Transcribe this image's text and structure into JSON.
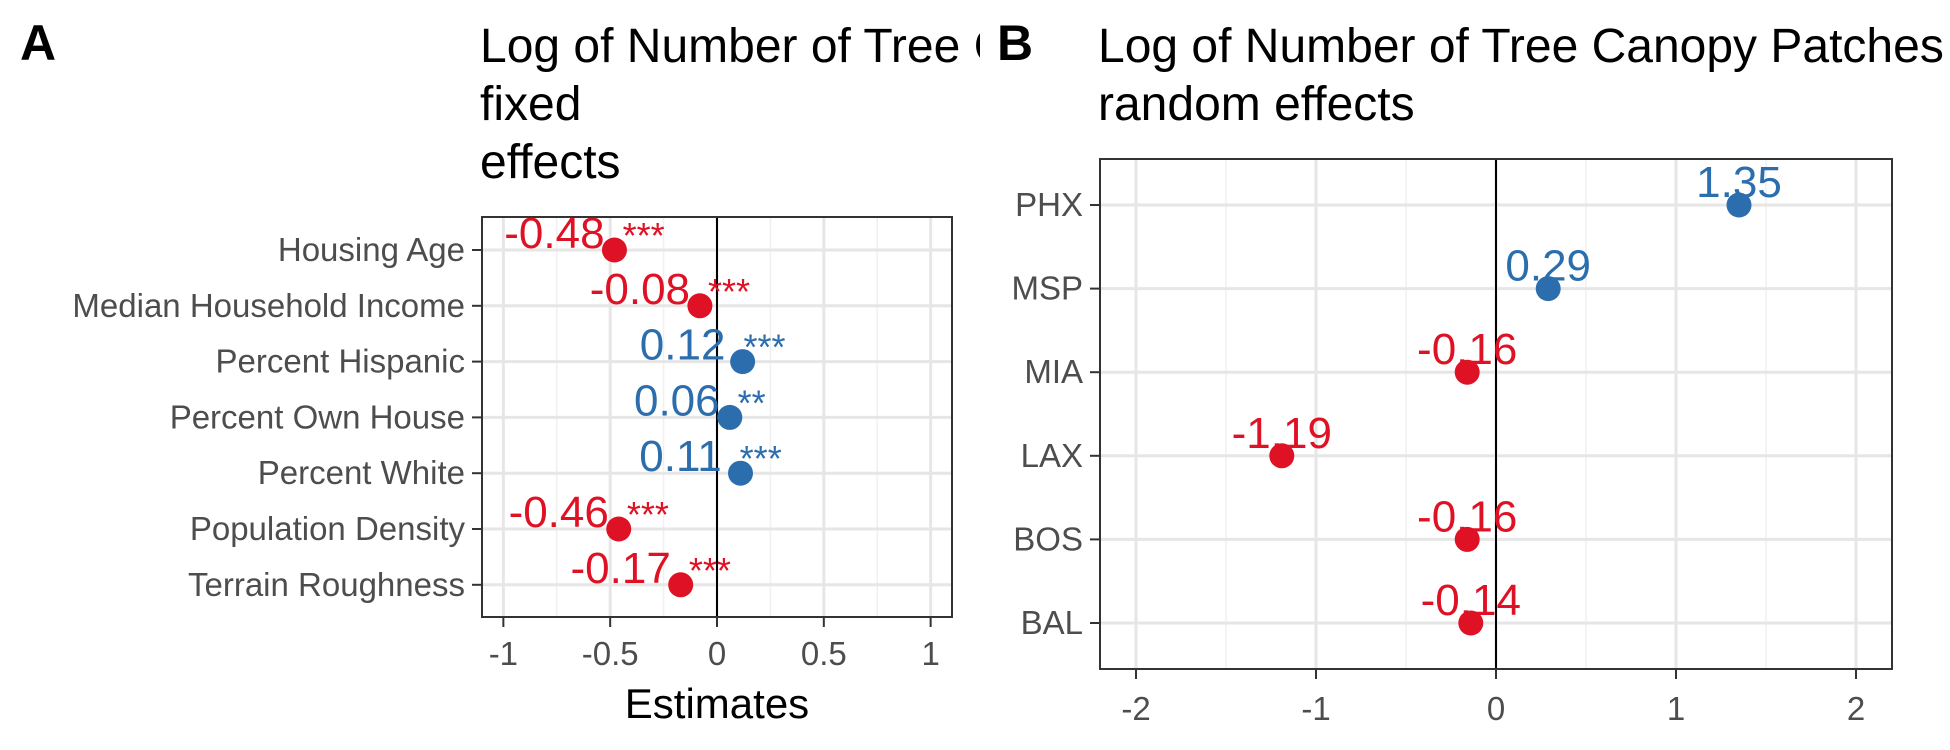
{
  "chart_data": [
    {
      "panel": "A",
      "type": "scatter",
      "title": "Log of Number of Tree Canopy Patches fixed effects",
      "title_lines": [
        "Log of Number of Tree Canopy Patches",
        "fixed",
        "effects"
      ],
      "xlabel": "Estimates",
      "ylabel": "",
      "xlim": [
        -1.1,
        1.1
      ],
      "xticks": [
        -1,
        -0.5,
        0,
        0.5,
        1
      ],
      "xtick_labels": [
        "-1",
        "-0.5",
        "0",
        "0.5",
        "1"
      ],
      "grid": true,
      "legend": "none",
      "categories": [
        "Housing Age",
        "Median Household Income",
        "Percent Hispanic",
        "Percent Own House",
        "Percent White",
        "Population Density",
        "Terrain Roughness"
      ],
      "values": [
        -0.48,
        -0.08,
        0.12,
        0.06,
        0.11,
        -0.46,
        -0.17
      ],
      "labels": [
        "-0.48",
        "-0.08",
        "0.12",
        "0.06",
        "0.11",
        "-0.46",
        "-0.17"
      ],
      "significance": [
        "***",
        "***",
        "***",
        "**",
        "***",
        "***",
        "***"
      ],
      "colors": {
        "positive": "#2c6ead",
        "negative": "#df1124"
      }
    },
    {
      "panel": "B",
      "type": "scatter",
      "title": "Log of Number of Tree Canopy Patches random effects",
      "title_lines": [
        "Log of Number of Tree Canopy Patches",
        "random effects"
      ],
      "xlabel": "",
      "ylabel": "",
      "xlim": [
        -2.2,
        2.2
      ],
      "xticks": [
        -2,
        -1,
        0,
        1,
        2
      ],
      "xtick_labels": [
        "-2",
        "-1",
        "0",
        "1",
        "2"
      ],
      "grid": true,
      "legend": "none",
      "categories": [
        "PHX",
        "MSP",
        "MIA",
        "LAX",
        "BOS",
        "BAL"
      ],
      "values": [
        1.35,
        0.29,
        -0.16,
        -1.19,
        -0.16,
        -0.14
      ],
      "labels": [
        "1.35",
        "0.29",
        "-0.16",
        "-1.19",
        "-0.16",
        "-0.14"
      ],
      "colors": {
        "positive": "#2c6ead",
        "negative": "#df1124"
      }
    }
  ]
}
